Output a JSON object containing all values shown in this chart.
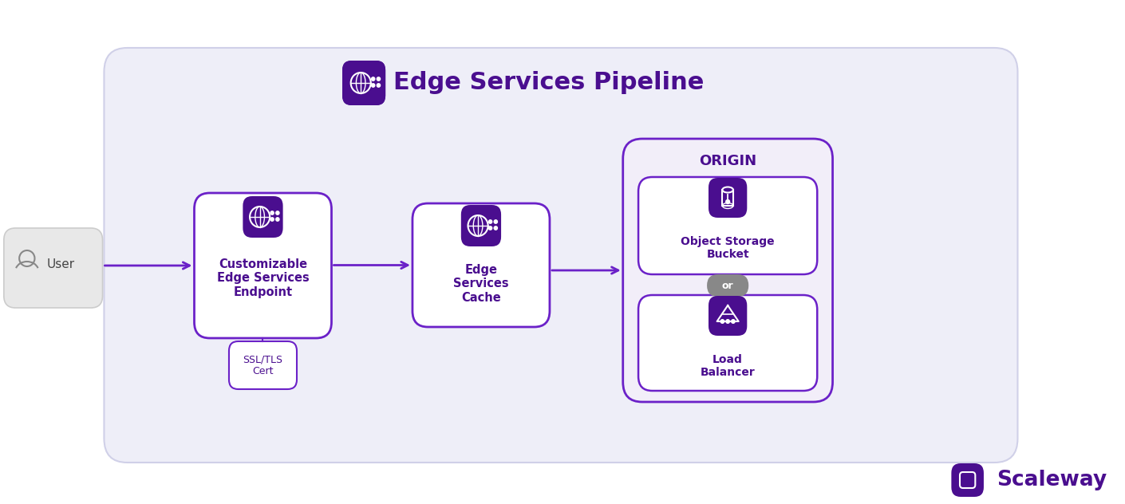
{
  "bg_color": "#ffffff",
  "panel_bg": "#eeeef8",
  "panel_border": "#d0d0e8",
  "purple_dark": "#4a0e8f",
  "purple_mid": "#6b21c8",
  "purple_icon_bg": "#4a0e8f",
  "gray_box": "#e8e8e8",
  "gray_text": "#555555",
  "arrow_color": "#6b21c8",
  "title": "Edge Services Pipeline",
  "title_fontsize": 22,
  "user_label": "User",
  "endpoint_label": "Customizable\nEdge Services\nEndpoint",
  "cache_label": "Edge\nServices\nCache",
  "origin_label": "ORIGIN",
  "bucket_label": "Object Storage\nBucket",
  "balancer_label": "Load\nBalancer",
  "ssl_label": "SSL/TLS\nCert",
  "or_label": "or",
  "scaleway_label": "Scaleway"
}
